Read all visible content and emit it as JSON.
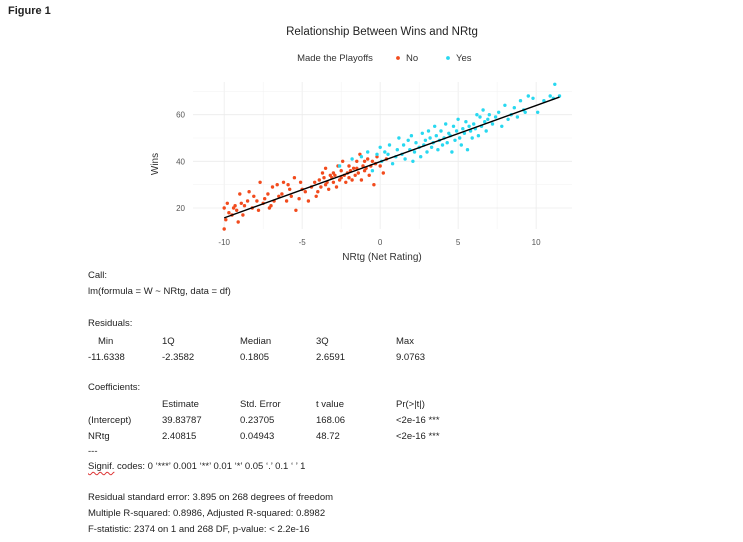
{
  "figure_label": "Figure 1",
  "chart_data": {
    "type": "scatter",
    "title": "Relationship Between Wins and NRtg",
    "xlabel": "NRtg (Net Rating)",
    "ylabel": "Wins",
    "xlim": [
      -12,
      12.3
    ],
    "ylim": [
      11,
      74
    ],
    "x_ticks": [
      -10,
      -5,
      0,
      5,
      10
    ],
    "x_tick_labels": [
      "-10",
      "-5",
      "0",
      "5",
      "10"
    ],
    "y_ticks": [
      20,
      40,
      60
    ],
    "y_tick_labels": [
      "20",
      "40",
      "60"
    ],
    "grid": true,
    "legend": {
      "title": "Made the Playoffs",
      "placement": "top",
      "entries": [
        {
          "label": "No",
          "color": "#f24b1d"
        },
        {
          "label": "Yes",
          "color": "#28d8f0"
        }
      ]
    },
    "fit_line": {
      "intercept": 39.83787,
      "slope": 2.40815,
      "x_range": [
        -10,
        11.5
      ],
      "color": "#000000"
    },
    "series": [
      {
        "name": "No",
        "color": "#f24b1d",
        "x": [
          -10.0,
          -10.0,
          -9.9,
          -9.8,
          -9.7,
          -9.5,
          -9.4,
          -9.3,
          -9.2,
          -9.1,
          -9.0,
          -8.9,
          -8.8,
          -8.7,
          -8.5,
          -8.4,
          -8.2,
          -8.1,
          -7.9,
          -7.8,
          -7.7,
          -7.5,
          -7.4,
          -7.2,
          -7.1,
          -7.0,
          -6.9,
          -6.8,
          -6.6,
          -6.5,
          -6.3,
          -6.2,
          -6.0,
          -5.9,
          -5.8,
          -5.7,
          -5.5,
          -5.4,
          -5.2,
          -5.1,
          -5.0,
          -4.8,
          -4.6,
          -4.4,
          -4.2,
          -4.1,
          -4.0,
          -3.9,
          -3.8,
          -3.7,
          -3.6,
          -3.5,
          -3.5,
          -3.4,
          -3.3,
          -3.2,
          -3.1,
          -3.0,
          -3.0,
          -2.9,
          -2.8,
          -2.7,
          -2.6,
          -2.5,
          -2.5,
          -2.4,
          -2.3,
          -2.2,
          -2.1,
          -2.0,
          -2.0,
          -1.9,
          -1.8,
          -1.7,
          -1.6,
          -1.5,
          -1.5,
          -1.4,
          -1.3,
          -1.2,
          -1.1,
          -1.0,
          -1.0,
          -0.9,
          -0.8,
          -0.7,
          -0.6,
          -0.5,
          -0.4,
          -0.3,
          -0.2,
          0.0,
          0.2,
          0.4
        ],
        "y": [
          20,
          11,
          15,
          22,
          18,
          17,
          20,
          21,
          19,
          14,
          26,
          22,
          17,
          21,
          23,
          27,
          20,
          25,
          23,
          19,
          31,
          22,
          24,
          26,
          20,
          21,
          29,
          23,
          30,
          25,
          26,
          31,
          23,
          30,
          28,
          25,
          33,
          19,
          24,
          31,
          28,
          27,
          23,
          29,
          31,
          25,
          27,
          32,
          29,
          35,
          33,
          37,
          30,
          31,
          28,
          34,
          33,
          31,
          35,
          34,
          29,
          38,
          32,
          36,
          33,
          40,
          34,
          31,
          35,
          33,
          38,
          36,
          32,
          37,
          34,
          40,
          37,
          35,
          43,
          32,
          38,
          36,
          40,
          37,
          41,
          34,
          38,
          40,
          30,
          39,
          42,
          38,
          35,
          41
        ]
      },
      {
        "name": "Yes",
        "color": "#28d8f0",
        "x": [
          -2.6,
          -1.8,
          -1.2,
          -0.8,
          -0.5,
          -0.2,
          0.0,
          0.1,
          0.3,
          0.5,
          0.6,
          0.8,
          1.0,
          1.1,
          1.2,
          1.4,
          1.5,
          1.6,
          1.8,
          1.9,
          2.0,
          2.1,
          2.2,
          2.3,
          2.5,
          2.6,
          2.7,
          2.8,
          2.9,
          3.0,
          3.1,
          3.2,
          3.3,
          3.4,
          3.5,
          3.6,
          3.7,
          3.8,
          3.9,
          4.0,
          4.1,
          4.2,
          4.3,
          4.4,
          4.5,
          4.6,
          4.7,
          4.8,
          4.9,
          5.0,
          5.1,
          5.2,
          5.3,
          5.4,
          5.5,
          5.6,
          5.7,
          5.8,
          5.9,
          6.0,
          6.1,
          6.2,
          6.3,
          6.4,
          6.5,
          6.6,
          6.7,
          6.8,
          6.9,
          7.0,
          7.2,
          7.4,
          7.6,
          7.8,
          8.0,
          8.2,
          8.4,
          8.6,
          8.8,
          9.0,
          9.2,
          9.5,
          9.8,
          10.1,
          10.5,
          10.9,
          11.2,
          11.5,
          11.1,
          9.3
        ],
        "y": [
          38,
          41,
          42,
          44,
          36,
          43,
          46,
          40,
          44,
          43,
          47,
          39,
          42,
          45,
          50,
          43,
          47,
          41,
          49,
          45,
          51,
          40,
          44,
          48,
          46,
          42,
          52,
          47,
          49,
          44,
          53,
          50,
          46,
          48,
          55,
          51,
          45,
          49,
          53,
          47,
          50,
          56,
          48,
          52,
          51,
          44,
          55,
          49,
          53,
          58,
          50,
          47,
          54,
          52,
          57,
          45,
          55,
          53,
          50,
          56,
          54,
          60,
          51,
          59,
          55,
          62,
          57,
          53,
          58,
          60,
          56,
          59,
          61,
          55,
          64,
          58,
          60,
          63,
          59,
          66,
          62,
          68,
          67,
          61,
          66,
          68,
          73,
          68,
          67,
          61
        ]
      }
    ]
  },
  "regression": {
    "call_header": "Call:",
    "call": "lm(formula = W ~ NRtg, data = df)",
    "residuals_header": "Residuals:",
    "residuals_cols": [
      "Min",
      "1Q",
      "Median",
      "3Q",
      "Max"
    ],
    "residuals_vals": [
      "-11.6338",
      "-2.3582",
      "0.1805",
      "2.6591",
      "9.0763"
    ],
    "coefficients_header": "Coefficients:",
    "coef_cols": [
      "Estimate",
      "Std. Error",
      "t value",
      "Pr(>|t|)"
    ],
    "coef_rows": [
      {
        "name": "(Intercept)",
        "estimate": "39.83787",
        "se": "0.23705",
        "t": "168.06",
        "p": "<2e-16 ***"
      },
      {
        "name": "NRtg",
        "estimate": "2.40815",
        "se": "0.04943",
        "t": "48.72",
        "p": "<2e-16 ***"
      }
    ],
    "separator": "---",
    "signif_word": "Signif.",
    "signif_rest": " codes:  0 ‘***’ 0.001 ‘**’ 0.01 ‘*’ 0.05 ‘.’ 0.1 ‘ ’ 1",
    "rse": "Residual standard error: 3.895 on 268 degrees of freedom",
    "r2": "Multiple R-squared:  0.8986,\tAdjusted R-squared:  0.8982",
    "fstat": "F-statistic:  2374 on 1 and 268 DF,  p-value: < 2.2e-16"
  }
}
